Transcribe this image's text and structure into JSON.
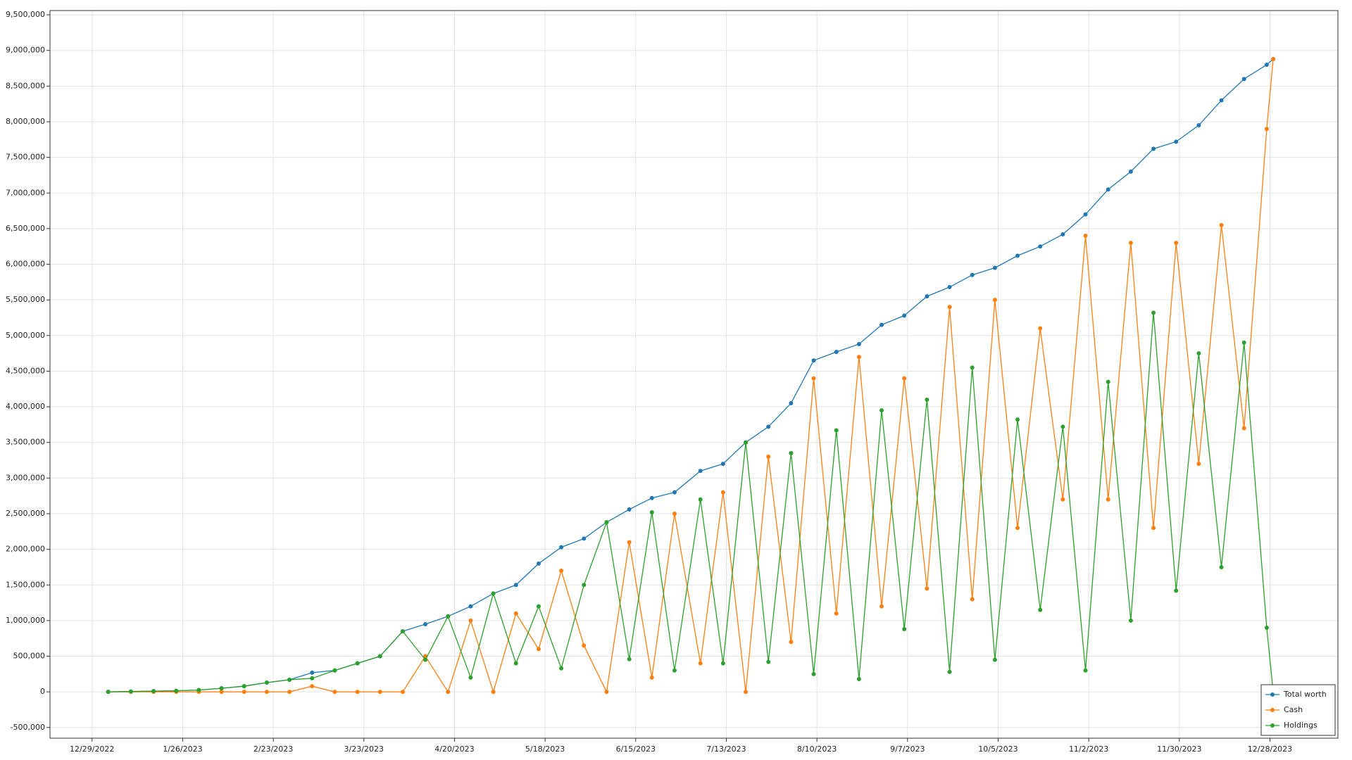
{
  "chart_data": {
    "type": "line",
    "x": [
      "1/3/2023",
      "1/10/2023",
      "1/17/2023",
      "1/24/2023",
      "1/31/2023",
      "2/7/2023",
      "2/14/2023",
      "2/21/2023",
      "2/28/2023",
      "3/7/2023",
      "3/14/2023",
      "3/21/2023",
      "3/28/2023",
      "4/4/2023",
      "4/11/2023",
      "4/18/2023",
      "4/25/2023",
      "5/2/2023",
      "5/9/2023",
      "5/16/2023",
      "5/23/2023",
      "5/30/2023",
      "6/6/2023",
      "6/13/2023",
      "6/20/2023",
      "6/27/2023",
      "7/5/2023",
      "7/12/2023",
      "7/19/2023",
      "7/26/2023",
      "8/2/2023",
      "8/9/2023",
      "8/16/2023",
      "8/23/2023",
      "8/30/2023",
      "9/6/2023",
      "9/13/2023",
      "9/20/2023",
      "9/27/2023",
      "10/4/2023",
      "10/11/2023",
      "10/18/2023",
      "10/25/2023",
      "11/1/2023",
      "11/8/2023",
      "11/15/2023",
      "11/22/2023",
      "11/29/2023",
      "12/6/2023",
      "12/13/2023",
      "12/20/2023",
      "12/27/2023",
      "12/29/2023"
    ],
    "series": [
      {
        "name": "Total worth",
        "color": "#1f77b4",
        "values": [
          0,
          5000,
          10000,
          15000,
          25000,
          50000,
          80000,
          130000,
          170000,
          270000,
          300000,
          400000,
          500000,
          850000,
          950000,
          1060000,
          1200000,
          1380000,
          1500000,
          1800000,
          2030000,
          2150000,
          2380000,
          2560000,
          2720000,
          2800000,
          3100000,
          3200000,
          3500000,
          3720000,
          4050000,
          4650000,
          4770000,
          4880000,
          5150000,
          5280000,
          5550000,
          5680000,
          5850000,
          5950000,
          6120000,
          6250000,
          6420000,
          6700000,
          7050000,
          7300000,
          7620000,
          7720000,
          7950000,
          8300000,
          8600000,
          8800000,
          8880000
        ]
      },
      {
        "name": "Cash",
        "color": "#ff7f0e",
        "values": [
          0,
          0,
          0,
          0,
          0,
          0,
          0,
          0,
          0,
          80000,
          0,
          0,
          0,
          0,
          500000,
          0,
          1000000,
          0,
          1100000,
          600000,
          1700000,
          650000,
          0,
          2100000,
          200000,
          2500000,
          400000,
          2800000,
          0,
          3300000,
          700000,
          4400000,
          1100000,
          4700000,
          1200000,
          4400000,
          1450000,
          5400000,
          1300000,
          5500000,
          2300000,
          5100000,
          2700000,
          6400000,
          2700000,
          6300000,
          2300000,
          6300000,
          3200000,
          6550000,
          3700000,
          7900000,
          8880000
        ]
      },
      {
        "name": "Holdings",
        "color": "#2ca02c",
        "values": [
          0,
          5000,
          10000,
          15000,
          25000,
          50000,
          80000,
          130000,
          170000,
          190000,
          300000,
          400000,
          500000,
          850000,
          450000,
          1060000,
          200000,
          1380000,
          400000,
          1200000,
          330000,
          1500000,
          2380000,
          460000,
          2520000,
          300000,
          2700000,
          400000,
          3500000,
          420000,
          3350000,
          250000,
          3670000,
          180000,
          3950000,
          880000,
          4100000,
          280000,
          4550000,
          450000,
          3820000,
          1150000,
          3720000,
          300000,
          4350000,
          1000000,
          5320000,
          1420000,
          4750000,
          1750000,
          4900000,
          900000,
          0
        ]
      }
    ],
    "xlim": [
      "12/16/2022",
      "1/18/2024"
    ],
    "xticks": [
      "12/29/2022",
      "1/26/2023",
      "2/23/2023",
      "3/23/2023",
      "4/20/2023",
      "5/18/2023",
      "6/15/2023",
      "7/13/2023",
      "8/10/2023",
      "9/7/2023",
      "10/5/2023",
      "11/2/2023",
      "11/30/2023",
      "12/28/2023"
    ],
    "ylim": [
      -650000,
      9560000
    ],
    "yticks": [
      {
        "value": -500000,
        "label": "-500,000"
      },
      0,
      {
        "value": 500000,
        "label": "500,000"
      },
      {
        "value": 1000000,
        "label": "1,000,000"
      },
      {
        "value": 1500000,
        "label": "1,500,000"
      },
      {
        "value": 2000000,
        "label": "2,000,000"
      },
      {
        "value": 2500000,
        "label": "2,500,000"
      },
      {
        "value": 3000000,
        "label": "3,000,000"
      },
      {
        "value": 3500000,
        "label": "3,500,000"
      },
      {
        "value": 4000000,
        "label": "4,000,000"
      },
      {
        "value": 4500000,
        "label": "4,500,000"
      },
      {
        "value": 5000000,
        "label": "5,000,000"
      },
      {
        "value": 5500000,
        "label": "5,500,000"
      },
      {
        "value": 6000000,
        "label": "6,000,000"
      },
      {
        "value": 6500000,
        "label": "6,500,000"
      },
      {
        "value": 7000000,
        "label": "7,000,000"
      },
      {
        "value": 7500000,
        "label": "7,500,000"
      },
      {
        "value": 8000000,
        "label": "8,000,000"
      },
      {
        "value": 8500000,
        "label": "8,500,000"
      },
      {
        "value": 9000000,
        "label": "9,000,000"
      },
      {
        "value": 9500000,
        "label": "9,500,000"
      }
    ],
    "grid": true,
    "legend": "lower right"
  }
}
